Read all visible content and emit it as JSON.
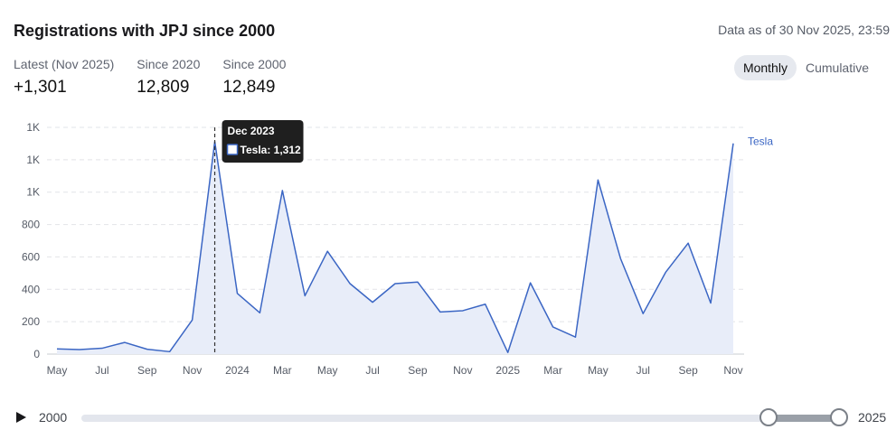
{
  "header": {
    "title": "Registrations with JPJ since 2000",
    "as_of": "Data as of 30 Nov 2025, 23:59"
  },
  "stats": [
    {
      "label": "Latest (Nov 2025)",
      "value": "+1,301"
    },
    {
      "label": "Since 2020",
      "value": "12,809"
    },
    {
      "label": "Since 2000",
      "value": "12,849"
    }
  ],
  "toggle": {
    "options": [
      "Monthly",
      "Cumulative"
    ],
    "active": "Monthly"
  },
  "tooltip": {
    "title": "Dec 2023",
    "text": "Tesla: 1,312"
  },
  "timeline": {
    "start_label": "2000",
    "end_label": "2025",
    "range_start_fraction": 0.907,
    "range_end_fraction": 1.0
  },
  "colors": {
    "series": "#3b66c4",
    "area": "#e8edf9",
    "grid": "#e2e4e8",
    "axis_text": "#555b66"
  },
  "chart_data": {
    "type": "area",
    "title": "",
    "xlabel": "",
    "ylabel": "",
    "ylim": [
      0,
      1400
    ],
    "y_ticks": [
      0,
      200,
      400,
      600,
      800,
      1000,
      1200,
      1400
    ],
    "y_tick_labels": [
      "0",
      "200",
      "400",
      "600",
      "800",
      "1K",
      "1K",
      "1K"
    ],
    "x_tick_labels": [
      "May",
      "Jul",
      "Sep",
      "Nov",
      "2024",
      "Mar",
      "May",
      "Jul",
      "Sep",
      "Nov",
      "2025",
      "Mar",
      "May",
      "Jul",
      "Sep",
      "Nov"
    ],
    "x_tick_indices": [
      0,
      2,
      4,
      6,
      8,
      10,
      12,
      14,
      16,
      18,
      20,
      22,
      24,
      26,
      28,
      30
    ],
    "x": [
      "May 2023",
      "Jun 2023",
      "Jul 2023",
      "Aug 2023",
      "Sep 2023",
      "Oct 2023",
      "Nov 2023",
      "Dec 2023",
      "Jan 2024",
      "Feb 2024",
      "Mar 2024",
      "Apr 2024",
      "May 2024",
      "Jun 2024",
      "Jul 2024",
      "Aug 2024",
      "Sep 2024",
      "Oct 2024",
      "Nov 2024",
      "Dec 2024",
      "Jan 2025",
      "Feb 2025",
      "Mar 2025",
      "Apr 2025",
      "May 2025",
      "Jun 2025",
      "Jul 2025",
      "Aug 2025",
      "Sep 2025",
      "Oct 2025",
      "Nov 2025"
    ],
    "series": [
      {
        "name": "Tesla",
        "values": [
          32,
          28,
          36,
          72,
          30,
          15,
          210,
          1312,
          375,
          255,
          1010,
          360,
          635,
          435,
          320,
          435,
          445,
          260,
          268,
          308,
          10,
          440,
          168,
          105,
          1075,
          590,
          250,
          505,
          685,
          315,
          1301
        ]
      }
    ],
    "highlight_index": 7,
    "grid": true
  }
}
